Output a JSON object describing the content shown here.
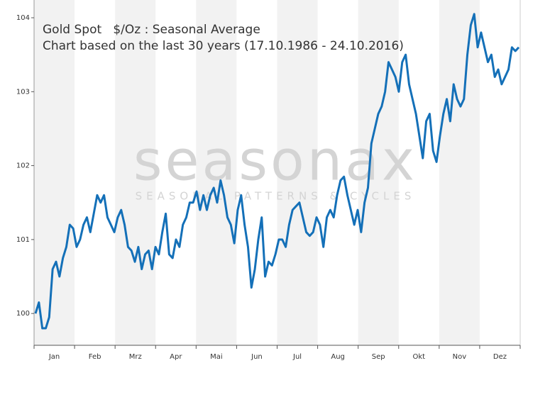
{
  "chart_data": {
    "type": "line",
    "title": "Gold Spot   $/Oz : Seasonal Average",
    "subtitle": "Chart based on the last 30 years (17.10.1986 - 24.10.2016)",
    "watermark": {
      "logo": "seasonax",
      "tagline": "SEASONAL PATTERNS & CYCLES"
    },
    "months": [
      "Jan",
      "Feb",
      "Mrz",
      "Apr",
      "Mai",
      "Jun",
      "Jul",
      "Aug",
      "Sep",
      "Okt",
      "Nov",
      "Dez"
    ],
    "color": "#1470b8",
    "values": [
      100.0,
      100.15,
      99.8,
      99.8,
      99.95,
      100.6,
      100.7,
      100.5,
      100.75,
      100.9,
      101.2,
      101.15,
      100.9,
      101.0,
      101.2,
      101.3,
      101.1,
      101.35,
      101.6,
      101.5,
      101.6,
      101.3,
      101.2,
      101.1,
      101.3,
      101.4,
      101.2,
      100.9,
      100.85,
      100.7,
      100.9,
      100.6,
      100.8,
      100.85,
      100.6,
      100.9,
      100.8,
      101.1,
      101.35,
      100.8,
      100.75,
      101.0,
      100.9,
      101.2,
      101.3,
      101.5,
      101.5,
      101.65,
      101.4,
      101.6,
      101.4,
      101.6,
      101.7,
      101.5,
      101.8,
      101.6,
      101.3,
      101.2,
      100.95,
      101.4,
      101.6,
      101.2,
      100.9,
      100.35,
      100.6,
      101.0,
      101.3,
      100.5,
      100.7,
      100.65,
      100.8,
      101.0,
      101.0,
      100.9,
      101.2,
      101.4,
      101.45,
      101.5,
      101.3,
      101.1,
      101.05,
      101.1,
      101.3,
      101.2,
      100.9,
      101.3,
      101.4,
      101.3,
      101.6,
      101.8,
      101.85,
      101.6,
      101.4,
      101.2,
      101.4,
      101.1,
      101.5,
      101.7,
      102.3,
      102.5,
      102.7,
      102.8,
      103.0,
      103.4,
      103.3,
      103.2,
      103.0,
      103.4,
      103.5,
      103.1,
      102.9,
      102.7,
      102.4,
      102.1,
      102.6,
      102.7,
      102.2,
      102.05,
      102.4,
      102.7,
      102.9,
      102.6,
      103.1,
      102.9,
      102.8,
      102.9,
      103.5,
      103.9,
      104.05,
      103.6,
      103.8,
      103.6,
      103.4,
      103.5,
      103.2,
      103.3,
      103.1,
      103.2,
      103.3,
      103.6,
      103.55,
      103.6
    ],
    "ylim": [
      99.57,
      104.24
    ],
    "yticks": [
      100,
      101,
      102,
      103,
      104
    ]
  }
}
